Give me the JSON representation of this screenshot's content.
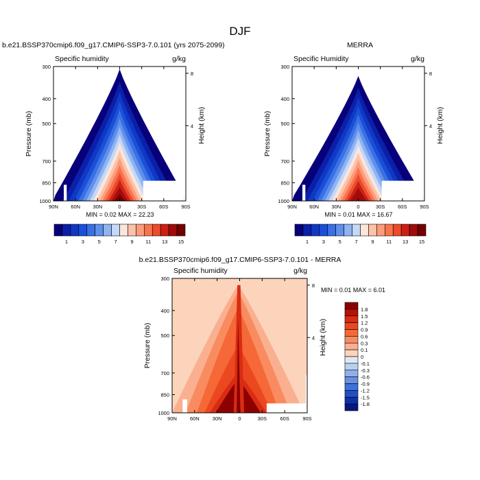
{
  "figure_title": "DJF",
  "chart_data": [
    {
      "type": "heatmap",
      "title": "b.e21.BSSP370cmip6.f09_g17.CMIP6-SSP3-7.0.101 (yrs 2075-2099)",
      "left_label": "Specific humidity",
      "units": "g/kg",
      "xlabel": "",
      "ylabel": "Pressure (mb)",
      "y2label": "Height (km)",
      "x_ticks": [
        "90N",
        "60N",
        "30N",
        "0",
        "30S",
        "60S",
        "90S"
      ],
      "y_ticks": [
        "300",
        "400",
        "500",
        "700",
        "850",
        "1000"
      ],
      "y2_ticks": [
        "8",
        "4"
      ],
      "min_text": "MIN =  0.02  MAX =  22.23",
      "min": 0.02,
      "max": 22.23,
      "peak_lat": 0,
      "colorbar": {
        "labels": [
          "1",
          "3",
          "5",
          "7",
          "9",
          "11",
          "13",
          "15"
        ],
        "levels": [
          1,
          2,
          3,
          4,
          5,
          6,
          7,
          8,
          9,
          10,
          11,
          12,
          13,
          14,
          15
        ],
        "colors": [
          "#08007a",
          "#0a20a8",
          "#1038c4",
          "#1a50d8",
          "#3a70e4",
          "#6090ec",
          "#90b4f2",
          "#c4d8f8",
          "#fbe6dc",
          "#fcc2aa",
          "#fc9c7c",
          "#f8744c",
          "#ec4b2c",
          "#cc2016",
          "#a00c0c",
          "#740000"
        ]
      }
    },
    {
      "type": "heatmap",
      "title": "MERRA",
      "left_label": "Specific Humidity",
      "units": "g/kg",
      "xlabel": "",
      "ylabel": "Pressure (mb)",
      "y2label": "Height (km)",
      "x_ticks": [
        "90N",
        "60N",
        "30N",
        "0",
        "30S",
        "60S",
        "90S"
      ],
      "y_ticks": [
        "300",
        "400",
        "500",
        "700",
        "850",
        "1000"
      ],
      "y2_ticks": [
        "8",
        "4"
      ],
      "min_text": "MIN =  0.01  MAX =  16.67",
      "min": 0.01,
      "max": 16.67,
      "peak_lat": 0,
      "colorbar": {
        "labels": [
          "1",
          "3",
          "5",
          "7",
          "9",
          "11",
          "13",
          "15"
        ],
        "levels": [
          1,
          2,
          3,
          4,
          5,
          6,
          7,
          8,
          9,
          10,
          11,
          12,
          13,
          14,
          15
        ],
        "colors": [
          "#08007a",
          "#0a20a8",
          "#1038c4",
          "#1a50d8",
          "#3a70e4",
          "#6090ec",
          "#90b4f2",
          "#c4d8f8",
          "#fbe6dc",
          "#fcc2aa",
          "#fc9c7c",
          "#f8744c",
          "#ec4b2c",
          "#cc2016",
          "#a00c0c",
          "#740000"
        ]
      }
    },
    {
      "type": "heatmap",
      "title": "b.e21.BSSP370cmip6.f09_g17.CMIP6-SSP3-7.0.101 - MERRA",
      "left_label": "Specific humidity",
      "units": "g/kg",
      "xlabel": "",
      "ylabel": "Pressure (mb)",
      "y2label": "Height (km)",
      "x_ticks": [
        "90N",
        "60N",
        "30N",
        "0",
        "30S",
        "60S",
        "90S"
      ],
      "y_ticks": [
        "300",
        "400",
        "500",
        "700",
        "850",
        "1000"
      ],
      "y2_ticks": [
        "8",
        "4"
      ],
      "min_text": "MIN =  0.01  MAX =  6.01",
      "min": 0.01,
      "max": 6.01,
      "colorbar": {
        "labels": [
          "1.8",
          "1.5",
          "1.2",
          "0.9",
          "0.6",
          "0.3",
          "0.1",
          "0",
          "-0.1",
          "-0.3",
          "-0.6",
          "-0.9",
          "-1.2",
          "-1.5",
          "-1.8"
        ],
        "colors": [
          "#8c0000",
          "#b81008",
          "#d82c14",
          "#ec4820",
          "#f66838",
          "#f88c60",
          "#fab090",
          "#fcd4bc",
          "#dce8f4",
          "#b8d0f0",
          "#90b0ea",
          "#6890e2",
          "#4070d8",
          "#2050c8",
          "#1030a8",
          "#081880"
        ]
      }
    }
  ]
}
